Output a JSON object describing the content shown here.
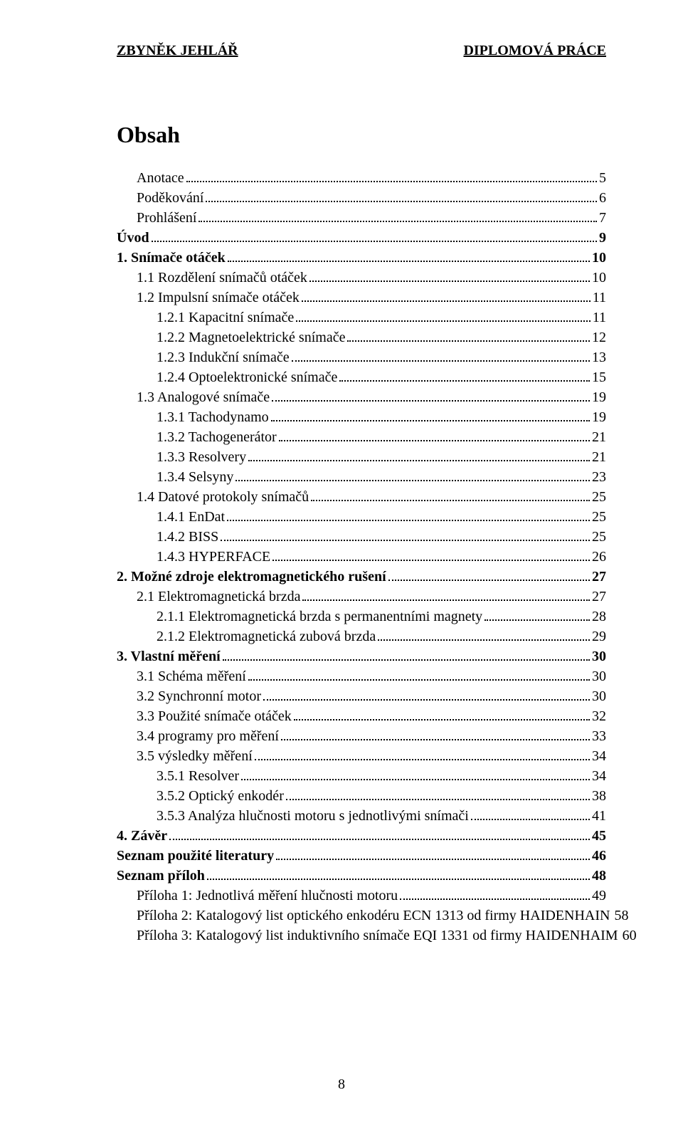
{
  "header": {
    "left": "ZBYNĚK JEHLÁŘ",
    "right": "DIPLOMOVÁ PRÁCE"
  },
  "title": "Obsah",
  "page_number": "8",
  "toc": [
    {
      "label": "Anotace",
      "page": "5",
      "indent": 1,
      "bold": false
    },
    {
      "label": "Poděkování",
      "page": "6",
      "indent": 1,
      "bold": false
    },
    {
      "label": "Prohlášení",
      "page": "7",
      "indent": 1,
      "bold": false
    },
    {
      "label": "Úvod",
      "page": "9",
      "indent": 0,
      "bold": true
    },
    {
      "label": "1. Snímače otáček",
      "page": "10",
      "indent": 0,
      "bold": true
    },
    {
      "label": "1.1 Rozdělení snímačů otáček",
      "page": "10",
      "indent": 1,
      "bold": false
    },
    {
      "label": "1.2 Impulsní snímače otáček",
      "page": "11",
      "indent": 1,
      "bold": false
    },
    {
      "label": "1.2.1 Kapacitní snímače",
      "page": "11",
      "indent": 2,
      "bold": false
    },
    {
      "label": "1.2.2 Magnetoelektrické snímače",
      "page": "12",
      "indent": 2,
      "bold": false
    },
    {
      "label": "1.2.3 Indukční snímače",
      "page": "13",
      "indent": 2,
      "bold": false
    },
    {
      "label": "1.2.4 Optoelektronické snímače",
      "page": "15",
      "indent": 2,
      "bold": false
    },
    {
      "label": "1.3 Analogové snímače",
      "page": "19",
      "indent": 1,
      "bold": false
    },
    {
      "label": "1.3.1 Tachodynamo",
      "page": "19",
      "indent": 2,
      "bold": false
    },
    {
      "label": "1.3.2 Tachogenerátor",
      "page": "21",
      "indent": 2,
      "bold": false
    },
    {
      "label": "1.3.3 Resolvery",
      "page": "21",
      "indent": 2,
      "bold": false
    },
    {
      "label": "1.3.4 Selsyny",
      "page": "23",
      "indent": 2,
      "bold": false
    },
    {
      "label": "1.4 Datové protokoly snímačů",
      "page": "25",
      "indent": 1,
      "bold": false
    },
    {
      "label": "1.4.1 EnDat",
      "page": "25",
      "indent": 2,
      "bold": false
    },
    {
      "label": "1.4.2 BISS",
      "page": "25",
      "indent": 2,
      "bold": false
    },
    {
      "label": "1.4.3 HYPERFACE",
      "page": "26",
      "indent": 2,
      "bold": false
    },
    {
      "label": "2. Možné zdroje elektromagnetického rušení",
      "page": "27",
      "indent": 0,
      "bold": true
    },
    {
      "label": "2.1 Elektromagnetická brzda",
      "page": "27",
      "indent": 1,
      "bold": false
    },
    {
      "label": "2.1.1 Elektromagnetická brzda s permanentními magnety",
      "page": "28",
      "indent": 2,
      "bold": false
    },
    {
      "label": "2.1.2 Elektromagnetická zubová brzda",
      "page": "29",
      "indent": 2,
      "bold": false
    },
    {
      "label": "3. Vlastní měření",
      "page": "30",
      "indent": 0,
      "bold": true
    },
    {
      "label": "3.1 Schéma měření",
      "page": "30",
      "indent": 1,
      "bold": false
    },
    {
      "label": "3.2 Synchronní motor",
      "page": "30",
      "indent": 1,
      "bold": false
    },
    {
      "label": "3.3 Použité snímače otáček",
      "page": "32",
      "indent": 1,
      "bold": false
    },
    {
      "label": "3.4 programy pro měření",
      "page": "33",
      "indent": 1,
      "bold": false
    },
    {
      "label": "3.5 výsledky měření",
      "page": "34",
      "indent": 1,
      "bold": false
    },
    {
      "label": "3.5.1 Resolver",
      "page": "34",
      "indent": 2,
      "bold": false
    },
    {
      "label": "3.5.2 Optický enkodér",
      "page": "38",
      "indent": 2,
      "bold": false
    },
    {
      "label": "3.5.3 Analýza hlučnosti motoru s jednotlivými snímači",
      "page": "41",
      "indent": 2,
      "bold": false
    },
    {
      "label": "4. Závěr",
      "page": "45",
      "indent": 0,
      "bold": true
    },
    {
      "label": "Seznam použité literatury",
      "page": "46",
      "indent": 0,
      "bold": true
    },
    {
      "label": "Seznam příloh",
      "page": "48",
      "indent": 0,
      "bold": true
    },
    {
      "label": "Příloha 1: Jednotlivá měření hlučnosti motoru",
      "page": "49",
      "indent": 1,
      "bold": false
    },
    {
      "label": "Příloha 2: Katalogový list optického enkodéru ECN 1313 od firmy  HAIDENHAIN",
      "page": "58",
      "indent": 1,
      "bold": false
    },
    {
      "label": "Příloha 3: Katalogový list induktivního snímače EQI 1331 od firmy HAIDENHAIM",
      "page": "60",
      "indent": 1,
      "bold": false
    }
  ]
}
